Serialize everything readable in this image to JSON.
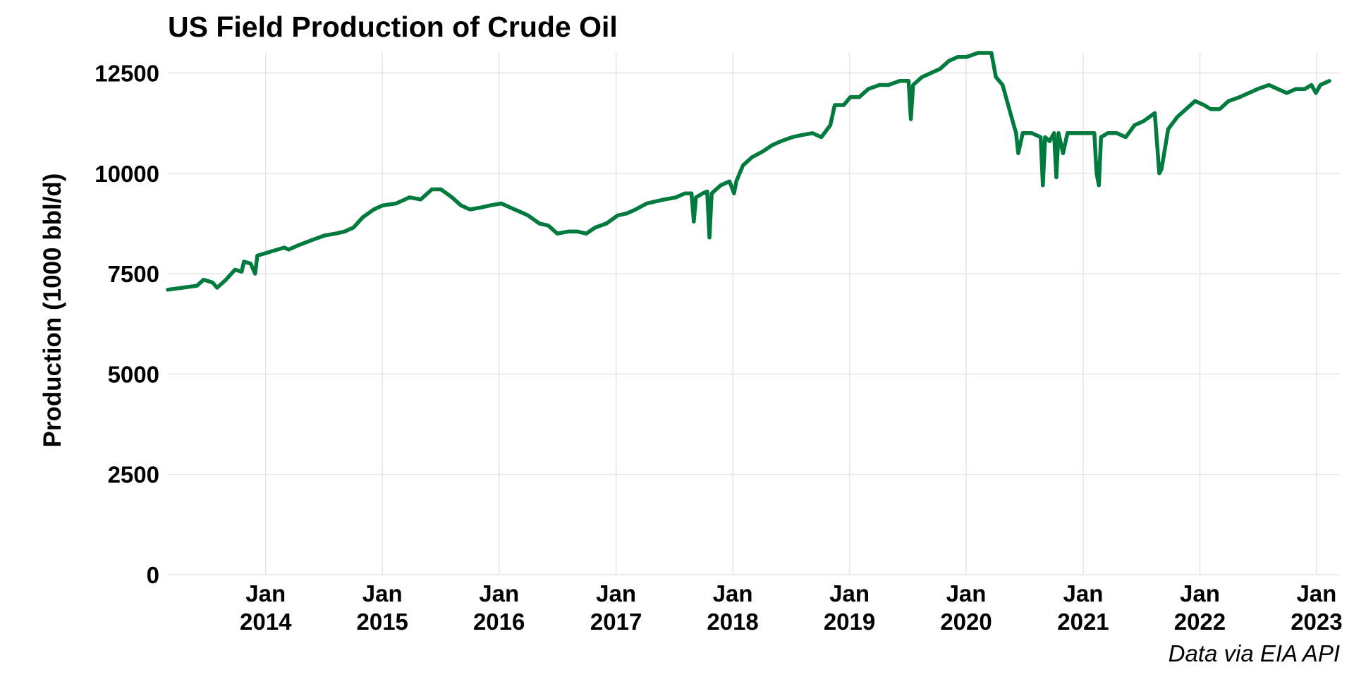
{
  "chart_data": {
    "type": "line",
    "title": "US Field Production of Crude Oil",
    "xlabel": "",
    "ylabel": "Production (1000 bbl/d)",
    "caption": "Data via EIA API",
    "line_color": "#007a3d",
    "grid": true,
    "legend": "none",
    "xlim": [
      "2013-03-01",
      "2023-03-15"
    ],
    "ylim": [
      0,
      13000
    ],
    "y_ticks": [
      {
        "value": 0,
        "label": "0"
      },
      {
        "value": 2500,
        "label": "2500"
      },
      {
        "value": 5000,
        "label": "5000"
      },
      {
        "value": 7500,
        "label": "7500"
      },
      {
        "value": 10000,
        "label": "10000"
      },
      {
        "value": 12500,
        "label": "12500"
      }
    ],
    "x_ticks": [
      {
        "date": "2014-01-01",
        "line1": "Jan",
        "line2": "2014"
      },
      {
        "date": "2015-01-01",
        "line1": "Jan",
        "line2": "2015"
      },
      {
        "date": "2016-01-01",
        "line1": "Jan",
        "line2": "2016"
      },
      {
        "date": "2017-01-01",
        "line1": "Jan",
        "line2": "2017"
      },
      {
        "date": "2018-01-01",
        "line1": "Jan",
        "line2": "2018"
      },
      {
        "date": "2019-01-01",
        "line1": "Jan",
        "line2": "2019"
      },
      {
        "date": "2020-01-01",
        "line1": "Jan",
        "line2": "2020"
      },
      {
        "date": "2021-01-01",
        "line1": "Jan",
        "line2": "2021"
      },
      {
        "date": "2022-01-01",
        "line1": "Jan",
        "line2": "2022"
      },
      {
        "date": "2023-01-01",
        "line1": "Jan",
        "line2": "2023"
      }
    ],
    "series": [
      {
        "points": [
          [
            "2013-03-01",
            7100
          ],
          [
            "2013-04-15",
            7150
          ],
          [
            "2013-05-31",
            7200
          ],
          [
            "2013-06-21",
            7350
          ],
          [
            "2013-07-19",
            7280
          ],
          [
            "2013-08-02",
            7150
          ],
          [
            "2013-08-30",
            7350
          ],
          [
            "2013-09-27",
            7600
          ],
          [
            "2013-10-18",
            7550
          ],
          [
            "2013-10-25",
            7800
          ],
          [
            "2013-11-15",
            7750
          ],
          [
            "2013-11-29",
            7500
          ],
          [
            "2013-12-06",
            7950
          ],
          [
            "2014-01-17",
            8050
          ],
          [
            "2014-02-28",
            8150
          ],
          [
            "2014-03-14",
            8100
          ],
          [
            "2014-04-11",
            8200
          ],
          [
            "2014-05-30",
            8350
          ],
          [
            "2014-07-04",
            8450
          ],
          [
            "2014-08-08",
            8500
          ],
          [
            "2014-09-05",
            8550
          ],
          [
            "2014-10-03",
            8650
          ],
          [
            "2014-10-31",
            8900
          ],
          [
            "2014-12-05",
            9100
          ],
          [
            "2015-01-02",
            9200
          ],
          [
            "2015-02-13",
            9250
          ],
          [
            "2015-03-27",
            9400
          ],
          [
            "2015-05-01",
            9350
          ],
          [
            "2015-06-05",
            9600
          ],
          [
            "2015-07-03",
            9600
          ],
          [
            "2015-08-07",
            9400
          ],
          [
            "2015-09-04",
            9200
          ],
          [
            "2015-10-02",
            9100
          ],
          [
            "2015-11-06",
            9150
          ],
          [
            "2015-12-04",
            9200
          ],
          [
            "2016-01-08",
            9250
          ],
          [
            "2016-02-05",
            9150
          ],
          [
            "2016-03-04",
            9050
          ],
          [
            "2016-04-01",
            8950
          ],
          [
            "2016-05-06",
            8750
          ],
          [
            "2016-06-03",
            8700
          ],
          [
            "2016-07-01",
            8500
          ],
          [
            "2016-08-05",
            8550
          ],
          [
            "2016-09-02",
            8550
          ],
          [
            "2016-09-30",
            8500
          ],
          [
            "2016-10-28",
            8650
          ],
          [
            "2016-12-02",
            8750
          ],
          [
            "2017-01-06",
            8950
          ],
          [
            "2017-02-03",
            9000
          ],
          [
            "2017-03-03",
            9100
          ],
          [
            "2017-04-07",
            9250
          ],
          [
            "2017-05-05",
            9300
          ],
          [
            "2017-06-02",
            9350
          ],
          [
            "2017-07-07",
            9400
          ],
          [
            "2017-08-04",
            9500
          ],
          [
            "2017-08-25",
            9500
          ],
          [
            "2017-09-01",
            8800
          ],
          [
            "2017-09-08",
            9400
          ],
          [
            "2017-09-29",
            9500
          ],
          [
            "2017-10-13",
            9550
          ],
          [
            "2017-10-20",
            8400
          ],
          [
            "2017-10-27",
            9500
          ],
          [
            "2017-11-24",
            9700
          ],
          [
            "2017-12-22",
            9800
          ],
          [
            "2018-01-05",
            9500
          ],
          [
            "2018-01-12",
            9800
          ],
          [
            "2018-02-02",
            10200
          ],
          [
            "2018-03-02",
            10400
          ],
          [
            "2018-04-06",
            10550
          ],
          [
            "2018-05-04",
            10700
          ],
          [
            "2018-06-01",
            10800
          ],
          [
            "2018-07-06",
            10900
          ],
          [
            "2018-08-03",
            10950
          ],
          [
            "2018-09-07",
            11000
          ],
          [
            "2018-10-05",
            10900
          ],
          [
            "2018-11-02",
            11200
          ],
          [
            "2018-11-16",
            11700
          ],
          [
            "2018-12-14",
            11700
          ],
          [
            "2019-01-04",
            11900
          ],
          [
            "2019-02-01",
            11900
          ],
          [
            "2019-03-01",
            12100
          ],
          [
            "2019-04-05",
            12200
          ],
          [
            "2019-05-03",
            12200
          ],
          [
            "2019-06-07",
            12300
          ],
          [
            "2019-07-05",
            12300
          ],
          [
            "2019-07-12",
            11350
          ],
          [
            "2019-07-19",
            12200
          ],
          [
            "2019-08-16",
            12400
          ],
          [
            "2019-09-13",
            12500
          ],
          [
            "2019-10-11",
            12600
          ],
          [
            "2019-11-08",
            12800
          ],
          [
            "2019-12-06",
            12900
          ],
          [
            "2020-01-03",
            12900
          ],
          [
            "2020-02-07",
            13000
          ],
          [
            "2020-03-06",
            13000
          ],
          [
            "2020-03-20",
            13000
          ],
          [
            "2020-04-03",
            12400
          ],
          [
            "2020-04-24",
            12200
          ],
          [
            "2020-05-15",
            11600
          ],
          [
            "2020-05-29",
            11200
          ],
          [
            "2020-06-05",
            11000
          ],
          [
            "2020-06-12",
            10500
          ],
          [
            "2020-06-26",
            11000
          ],
          [
            "2020-07-24",
            11000
          ],
          [
            "2020-08-21",
            10900
          ],
          [
            "2020-08-28",
            9700
          ],
          [
            "2020-09-04",
            10900
          ],
          [
            "2020-09-18",
            10800
          ],
          [
            "2020-10-02",
            11000
          ],
          [
            "2020-10-09",
            9900
          ],
          [
            "2020-10-16",
            11000
          ],
          [
            "2020-10-30",
            10500
          ],
          [
            "2020-11-13",
            11000
          ],
          [
            "2020-12-04",
            11000
          ],
          [
            "2021-01-08",
            11000
          ],
          [
            "2021-02-05",
            11000
          ],
          [
            "2021-02-12",
            10000
          ],
          [
            "2021-02-19",
            9700
          ],
          [
            "2021-02-26",
            10900
          ],
          [
            "2021-03-19",
            11000
          ],
          [
            "2021-04-16",
            11000
          ],
          [
            "2021-05-14",
            10900
          ],
          [
            "2021-06-11",
            11200
          ],
          [
            "2021-07-09",
            11300
          ],
          [
            "2021-08-13",
            11500
          ],
          [
            "2021-08-27",
            10000
          ],
          [
            "2021-09-03",
            10100
          ],
          [
            "2021-09-24",
            11100
          ],
          [
            "2021-10-22",
            11400
          ],
          [
            "2021-11-19",
            11600
          ],
          [
            "2021-12-17",
            11800
          ],
          [
            "2022-01-14",
            11700
          ],
          [
            "2022-02-04",
            11600
          ],
          [
            "2022-03-04",
            11600
          ],
          [
            "2022-04-01",
            11800
          ],
          [
            "2022-05-06",
            11900
          ],
          [
            "2022-06-03",
            12000
          ],
          [
            "2022-07-01",
            12100
          ],
          [
            "2022-08-05",
            12200
          ],
          [
            "2022-09-02",
            12100
          ],
          [
            "2022-09-30",
            12000
          ],
          [
            "2022-10-28",
            12100
          ],
          [
            "2022-11-25",
            12100
          ],
          [
            "2022-12-16",
            12200
          ],
          [
            "2022-12-30",
            12000
          ],
          [
            "2023-01-13",
            12200
          ],
          [
            "2023-02-10",
            12300
          ]
        ]
      }
    ]
  }
}
